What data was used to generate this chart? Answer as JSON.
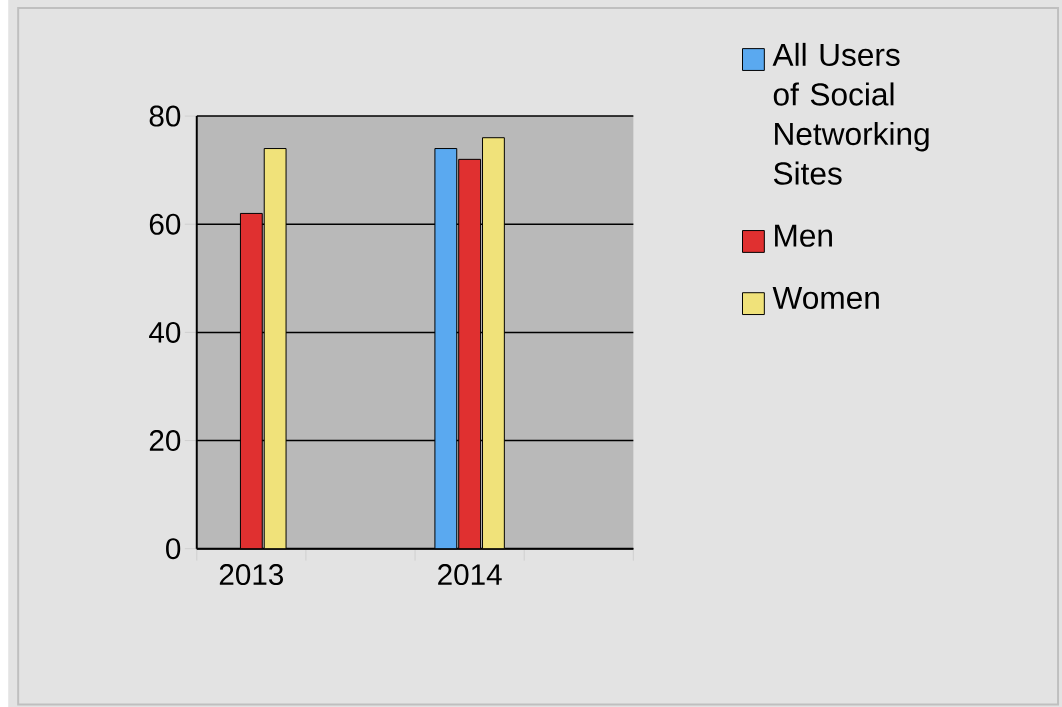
{
  "chart_data": {
    "type": "bar",
    "categories": [
      "2013",
      null,
      "2014",
      null
    ],
    "series": [
      {
        "name": "All Users of Social Networking Sites",
        "color": "#5aa9f0",
        "values": [
          null,
          null,
          74,
          null
        ]
      },
      {
        "name": "Men",
        "color": "#e03030",
        "values": [
          62,
          null,
          72,
          null
        ]
      },
      {
        "name": "Women",
        "color": "#f0e27a",
        "values": [
          74,
          null,
          76,
          null
        ]
      }
    ],
    "ylim": [
      0,
      80
    ],
    "yticks": [
      0,
      20,
      40,
      60,
      80
    ],
    "grid": "y",
    "legend": "right"
  }
}
